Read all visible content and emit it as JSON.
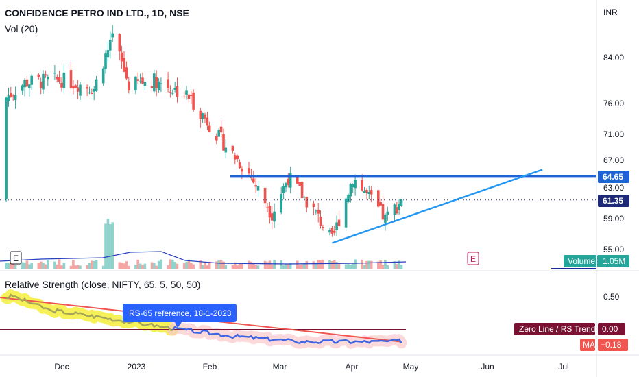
{
  "header": {
    "symbol_title": "CONFIDENCE PETRO IND LTD., 1D, NSE",
    "volume_indicator": "Vol (20)",
    "rs_indicator": "Relative Strength (close, NIFTY, 65, 5, 50, 50)",
    "currency": "INR"
  },
  "badges": {
    "earnings_1": "E",
    "earnings_2": "E"
  },
  "price_axis": {
    "ticks": [
      "84.00",
      "76.00",
      "71.00",
      "67.00",
      "63.00",
      "59.00",
      "55.00"
    ],
    "tick_values": [
      84,
      76,
      71,
      67,
      63,
      59,
      55
    ],
    "resistance_label": "64.65",
    "current_label": "61.35"
  },
  "volume_label": {
    "name": "Volume",
    "value": "1.05M"
  },
  "rs_axis": {
    "tick": "0.50"
  },
  "rs_labels": {
    "zero_line_name": "Zero Line / RS Trend",
    "zero_line_value": "0.00",
    "ma_name": "MA",
    "ma_value": "−0.18"
  },
  "callout": "RS-65 reference, 18-1-2023",
  "time_axis": [
    "Dec",
    "2023",
    "Feb",
    "Mar",
    "Apr",
    "May",
    "Jun",
    "Jul"
  ],
  "colors": {
    "up": "#26a69a",
    "down": "#ef5350",
    "line_blue": "#1e63d6",
    "trend_blue": "#2196f3",
    "rs_blue": "#3f66e0",
    "rs_red": "#f0554f",
    "zero_line": "#7b1233",
    "callout_bg": "#2962ff",
    "highlight_yellow": "#f5ee3b",
    "highlight_pink": "#f9c9cc",
    "volume_ma": "#2a3fbf"
  },
  "chart_data": {
    "type": "candlestick",
    "interval": "1D",
    "resistance_level": 64.65,
    "last_close": 61.35,
    "trendline": {
      "from": {
        "date": "2023-03-28",
        "price": 55.8
      },
      "to": {
        "date": "2023-06-27",
        "price": 65.6
      }
    },
    "ohlc_anchors": [
      {
        "date": "2022-11-01",
        "close": 75.0
      },
      {
        "date": "2022-11-15",
        "close": 79.5
      },
      {
        "date": "2022-12-01",
        "close": 80.0
      },
      {
        "date": "2022-12-15",
        "close": 78.5
      },
      {
        "date": "2022-12-23",
        "close": 88.0
      },
      {
        "date": "2022-12-30",
        "close": 79.0
      },
      {
        "date": "2023-01-10",
        "close": 80.0
      },
      {
        "date": "2023-01-25",
        "close": 77.0
      },
      {
        "date": "2023-02-08",
        "close": 70.0
      },
      {
        "date": "2023-02-20",
        "close": 65.0
      },
      {
        "date": "2023-03-02",
        "close": 59.5
      },
      {
        "date": "2023-03-09",
        "close": 64.5
      },
      {
        "date": "2023-03-20",
        "close": 60.0
      },
      {
        "date": "2023-03-28",
        "close": 56.0
      },
      {
        "date": "2023-04-06",
        "close": 64.5
      },
      {
        "date": "2023-04-20",
        "close": 58.8
      },
      {
        "date": "2023-04-27",
        "close": 61.35
      }
    ],
    "relative_strength": {
      "zero_line": 0.0,
      "ma_value": -0.18,
      "reference_date": "2023-01-18",
      "rs_points": [
        {
          "date": "2022-11-01",
          "value": 0.44
        },
        {
          "date": "2022-11-10",
          "value": 0.5
        },
        {
          "date": "2022-11-25",
          "value": 0.3
        },
        {
          "date": "2022-12-15",
          "value": 0.2
        },
        {
          "date": "2023-01-18",
          "value": 0.02
        },
        {
          "date": "2023-02-15",
          "value": -0.1
        },
        {
          "date": "2023-03-15",
          "value": -0.18
        },
        {
          "date": "2023-04-15",
          "value": -0.18
        },
        {
          "date": "2023-04-27",
          "value": -0.17
        }
      ],
      "ma_points": [
        {
          "date": "2022-11-01",
          "value": 0.48
        },
        {
          "date": "2023-04-27",
          "value": -0.18
        }
      ]
    }
  }
}
